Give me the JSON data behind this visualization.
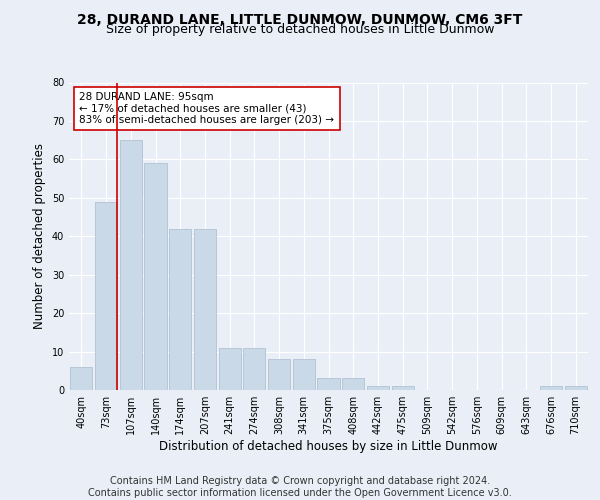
{
  "title": "28, DURAND LANE, LITTLE DUNMOW, DUNMOW, CM6 3FT",
  "subtitle": "Size of property relative to detached houses in Little Dunmow",
  "xlabel": "Distribution of detached houses by size in Little Dunmow",
  "ylabel": "Number of detached properties",
  "bar_values": [
    6,
    49,
    65,
    59,
    42,
    42,
    11,
    11,
    8,
    8,
    3,
    3,
    1,
    1,
    0,
    0,
    0,
    0,
    0,
    1,
    1
  ],
  "bin_labels": [
    "40sqm",
    "73sqm",
    "107sqm",
    "140sqm",
    "174sqm",
    "207sqm",
    "241sqm",
    "274sqm",
    "308sqm",
    "341sqm",
    "375sqm",
    "408sqm",
    "442sqm",
    "475sqm",
    "509sqm",
    "542sqm",
    "576sqm",
    "609sqm",
    "643sqm",
    "676sqm",
    "710sqm"
  ],
  "bar_color": "#c9d9e8",
  "bar_edge_color": "#aabbcc",
  "annotation_line_color": "#cc0000",
  "annotation_box_text": "28 DURAND LANE: 95sqm\n← 17% of detached houses are smaller (43)\n83% of semi-detached houses are larger (203) →",
  "annotation_box_color": "#ffffff",
  "annotation_box_edge_color": "#cc0000",
  "ylim": [
    0,
    80
  ],
  "yticks": [
    0,
    10,
    20,
    30,
    40,
    50,
    60,
    70,
    80
  ],
  "footer_text": "Contains HM Land Registry data © Crown copyright and database right 2024.\nContains public sector information licensed under the Open Government Licence v3.0.",
  "background_color": "#eaeff7",
  "plot_background_color": "#eaeff7",
  "grid_color": "#ffffff",
  "title_fontsize": 10,
  "subtitle_fontsize": 9,
  "xlabel_fontsize": 8.5,
  "ylabel_fontsize": 8.5,
  "tick_fontsize": 7,
  "footer_fontsize": 7,
  "ann_fontsize": 7.5
}
